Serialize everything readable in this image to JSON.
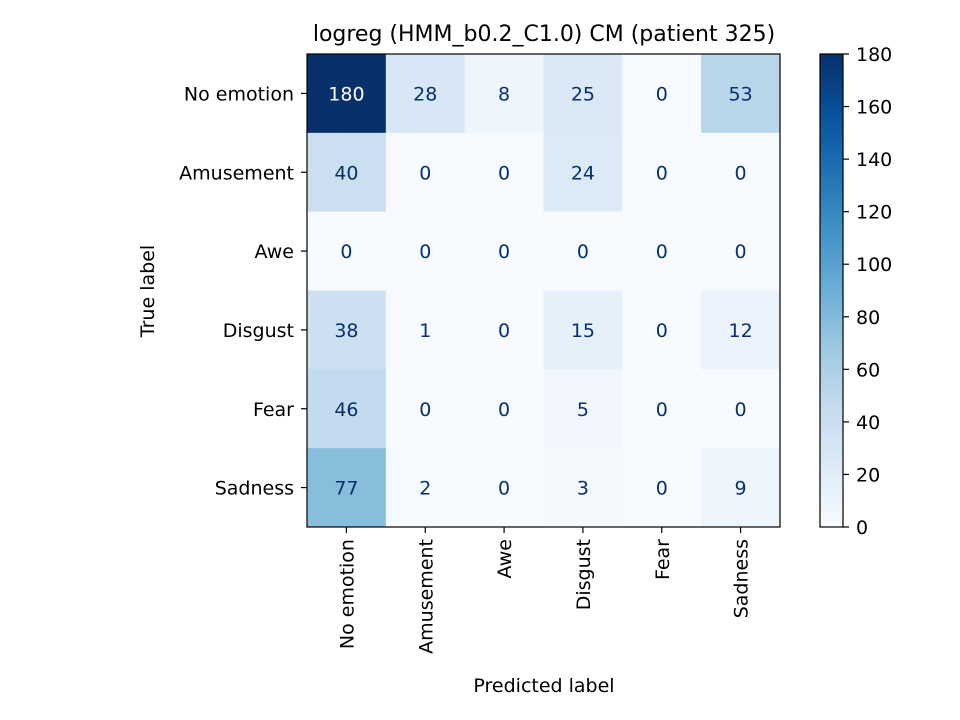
{
  "chart_data": {
    "type": "heatmap",
    "title": "logreg (HMM_b0.2_C1.0) CM (patient 325)",
    "xlabel": "Predicted label",
    "ylabel": "True label",
    "x_categories": [
      "No emotion",
      "Amusement",
      "Awe",
      "Disgust",
      "Fear",
      "Sadness"
    ],
    "y_categories": [
      "No emotion",
      "Amusement",
      "Awe",
      "Disgust",
      "Fear",
      "Sadness"
    ],
    "matrix": [
      [
        180,
        28,
        8,
        25,
        0,
        53
      ],
      [
        40,
        0,
        0,
        24,
        0,
        0
      ],
      [
        0,
        0,
        0,
        0,
        0,
        0
      ],
      [
        38,
        1,
        0,
        15,
        0,
        12
      ],
      [
        46,
        0,
        0,
        5,
        0,
        0
      ],
      [
        77,
        2,
        0,
        3,
        0,
        9
      ]
    ],
    "colormap": "Blues",
    "vmin": 0,
    "vmax": 180,
    "colorbar_ticks": [
      0,
      20,
      40,
      60,
      80,
      100,
      120,
      140,
      160,
      180
    ]
  }
}
